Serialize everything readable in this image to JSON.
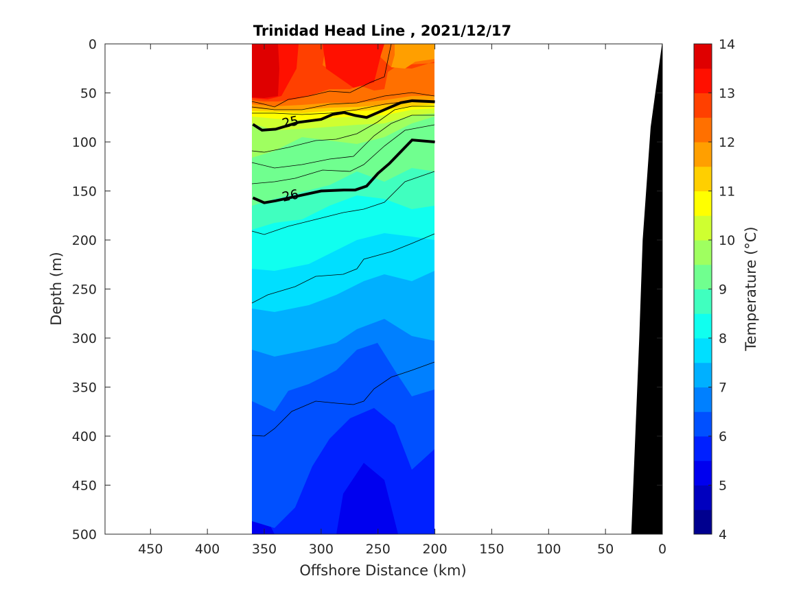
{
  "chart_data": {
    "type": "heatmap",
    "subtype": "filled-contour-section",
    "title": "Trinidad Head Line , 2021/12/17",
    "xlabel": "Offshore Distance (km)",
    "ylabel": "Depth (m)",
    "xlim": [
      490,
      0
    ],
    "ylim": [
      0,
      500
    ],
    "x_reversed": true,
    "y_reversed": true,
    "xticks": [
      "450",
      "400",
      "350",
      "300",
      "250",
      "200",
      "150",
      "100",
      "50",
      "0"
    ],
    "xtick_values": [
      450,
      400,
      350,
      300,
      250,
      200,
      150,
      100,
      50,
      0
    ],
    "yticks": [
      "0",
      "50",
      "100",
      "150",
      "200",
      "250",
      "300",
      "350",
      "400",
      "450",
      "500"
    ],
    "ytick_values": [
      0,
      50,
      100,
      150,
      200,
      250,
      300,
      350,
      400,
      450,
      500
    ],
    "data_x_range": [
      360,
      200
    ],
    "colorbar": {
      "label": "Temperature (°C)",
      "min": 4,
      "max": 14,
      "step": 0.5,
      "ticks": [
        "4",
        "5",
        "6",
        "7",
        "8",
        "9",
        "10",
        "11",
        "12",
        "13",
        "14"
      ],
      "tick_values": [
        4,
        5,
        6,
        7,
        8,
        9,
        10,
        11,
        12,
        13,
        14
      ],
      "colors": [
        "#00008f",
        "#0000bf",
        "#0000ef",
        "#0020ff",
        "#0050ff",
        "#0080ff",
        "#00b0ff",
        "#00dfff",
        "#10ffef",
        "#40ffbf",
        "#70ff8f",
        "#9fff60",
        "#cfff30",
        "#ffff00",
        "#ffcf00",
        "#ff9f00",
        "#ff7000",
        "#ff4000",
        "#ff1000",
        "#df0000",
        "#af0000"
      ]
    },
    "temperature_bands": [
      {
        "range": "13-13.5",
        "depth_top": [
          0,
          0,
          0
        ],
        "depth_bottom": [
          55,
          45,
          0
        ],
        "at_x": [
          360,
          340,
          330
        ]
      },
      {
        "range": "12.5-13",
        "depth_bottom_at_x": {
          "360": 60,
          "300": 55,
          "250": 55,
          "200": 55
        }
      },
      {
        "range": "10-12.5",
        "depth_bottom_at_x": {
          "360": 70,
          "300": 70,
          "250": 65,
          "200": 62
        }
      },
      {
        "range": "9-10",
        "depth_bottom_at_x": {
          "360": 110,
          "300": 100,
          "250": 95,
          "200": 80
        }
      },
      {
        "range": "8.5-9",
        "depth_bottom_at_x": {
          "360": 175,
          "300": 170,
          "250": 150,
          "200": 130
        }
      },
      {
        "range": "8-8.5",
        "depth_bottom_at_x": {
          "360": 200,
          "300": 195,
          "250": 180,
          "200": 165
        }
      },
      {
        "range": "7.5-8",
        "depth_bottom_at_x": {
          "360": 230,
          "300": 225,
          "250": 210,
          "200": 200
        }
      },
      {
        "range": "7-7.5",
        "depth_bottom_at_x": {
          "360": 270,
          "300": 265,
          "250": 240,
          "200": 230
        }
      },
      {
        "range": "6.5-7",
        "depth_bottom_at_x": {
          "360": 310,
          "300": 320,
          "250": 280,
          "200": 275
        }
      },
      {
        "range": "6-6.5",
        "depth_bottom_at_x": {
          "360": 355,
          "300": 370,
          "250": 340,
          "200": 350
        }
      },
      {
        "range": "5.5-6",
        "depth_bottom_at_x": {
          "360": 410,
          "300": 430,
          "250": 390,
          "200": 410
        }
      },
      {
        "range": "5-5.5",
        "depth_bottom_at_x": {
          "360": 460,
          "300": 500,
          "250": 440,
          "200": 500
        }
      },
      {
        "range": "4.5-5",
        "depth_bottom_at_x": {
          "360": 500,
          "300": 500,
          "250": 500,
          "200": 500
        }
      }
    ],
    "density_contours": [
      {
        "label": "25",
        "bold": true,
        "x": [
          360,
          352,
          340,
          320,
          300,
          290,
          280,
          270,
          260,
          250,
          240,
          230,
          220,
          200
        ],
        "y": [
          82,
          88,
          87,
          80,
          77,
          72,
          70,
          73,
          75,
          70,
          65,
          60,
          58,
          59
        ]
      },
      {
        "label": "26",
        "bold": true,
        "x": [
          360,
          350,
          340,
          320,
          300,
          280,
          270,
          260,
          250,
          240,
          230,
          220,
          200
        ],
        "y": [
          157,
          162,
          160,
          155,
          150,
          149,
          149,
          145,
          132,
          122,
          110,
          98,
          100
        ]
      }
    ],
    "seafloor": {
      "x": [
        27,
        20,
        17,
        10,
        0,
        0
      ],
      "y": [
        500,
        300,
        200,
        85,
        0,
        500
      ]
    }
  }
}
